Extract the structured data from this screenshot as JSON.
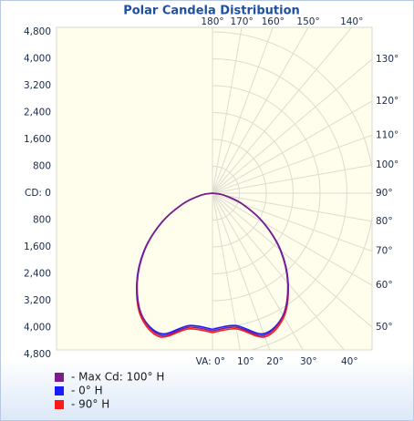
{
  "chart_data": {
    "type": "polar",
    "title": "Polar Candela Distribution",
    "rlim": [
      0,
      4800
    ],
    "rticks": [
      {
        "value": 0,
        "label": "CD: 0"
      },
      {
        "value": 800,
        "label": "800"
      },
      {
        "value": 1600,
        "label": "1,600"
      },
      {
        "value": 2400,
        "label": "2,400"
      },
      {
        "value": 3200,
        "label": "3,200"
      },
      {
        "value": 4000,
        "label": "4,000"
      },
      {
        "value": 4800,
        "label": "4,800"
      }
    ],
    "angle_ticks": [
      {
        "value": 0,
        "label": "VA: 0°"
      },
      {
        "value": 10,
        "label": "10°"
      },
      {
        "value": 20,
        "label": "20°"
      },
      {
        "value": 30,
        "label": "30°"
      },
      {
        "value": 40,
        "label": "40°"
      },
      {
        "value": 50,
        "label": "50°"
      },
      {
        "value": 60,
        "label": "60°"
      },
      {
        "value": 70,
        "label": "70°"
      },
      {
        "value": 80,
        "label": "80°"
      },
      {
        "value": 90,
        "label": "90°"
      },
      {
        "value": 100,
        "label": "100°"
      },
      {
        "value": 110,
        "label": "110°"
      },
      {
        "value": 120,
        "label": "120°"
      },
      {
        "value": 130,
        "label": "130°"
      },
      {
        "value": 140,
        "label": "140°"
      },
      {
        "value": 150,
        "label": "150°"
      },
      {
        "value": 160,
        "label": "160°"
      },
      {
        "value": 170,
        "label": "170°"
      },
      {
        "value": 180,
        "label": "180°"
      }
    ],
    "angles": [
      0,
      10,
      20,
      30,
      40,
      50,
      60,
      70,
      80,
      90
    ],
    "grid": true,
    "series": [
      {
        "name": "- Max Cd: 100° H",
        "color": "#7b1e8c",
        "values": [
          4100,
          4050,
          4500,
          4200,
          3480,
          2630,
          1740,
          940,
          340,
          0
        ]
      },
      {
        "name": "- 0° H",
        "color": "#1a1aff",
        "values": [
          4050,
          4000,
          4450,
          4200,
          3500,
          2650,
          1750,
          950,
          350,
          0
        ]
      },
      {
        "name": "- 90° H",
        "color": "#ff1a1a",
        "values": [
          4150,
          4100,
          4550,
          4250,
          3500,
          2650,
          1750,
          950,
          350,
          0
        ]
      }
    ]
  }
}
